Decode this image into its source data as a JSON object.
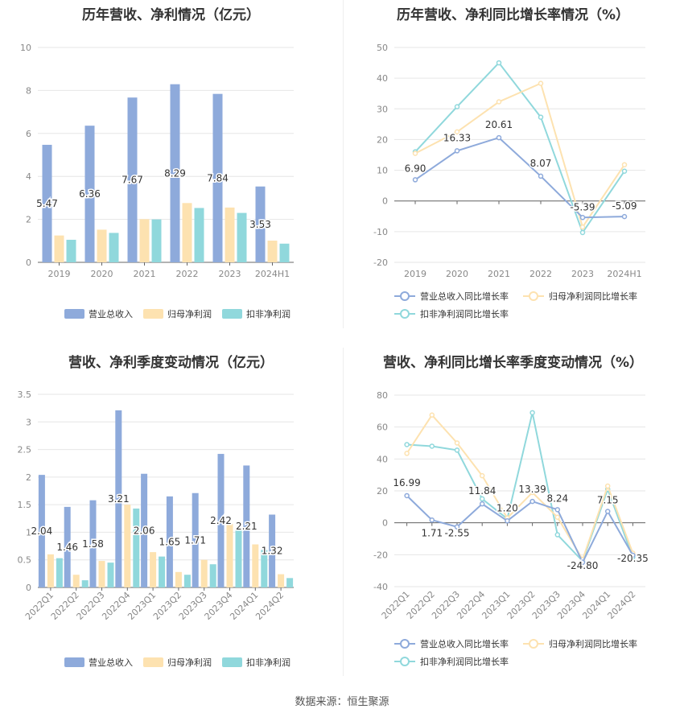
{
  "colors": {
    "revenue": "#8eaadb",
    "net_profit": "#fde2b0",
    "deducted_profit": "#90d8dc",
    "revenue_line": "#8eaadb",
    "net_line": "#fde2b0",
    "deducted_line": "#90d8dc"
  },
  "source": "数据来源：恒生聚源",
  "chart_data": [
    {
      "type": "bar",
      "title": "历年营收、净利情况（亿元）",
      "categories": [
        "2019",
        "2020",
        "2021",
        "2022",
        "2023",
        "2024H1"
      ],
      "ylim": [
        0,
        10
      ],
      "yticks": [
        0,
        2,
        4,
        6,
        8,
        10
      ],
      "series": [
        {
          "name": "营业总收入",
          "values": [
            5.47,
            6.36,
            7.67,
            8.29,
            7.84,
            3.53
          ],
          "labels": [
            "5.47",
            "6.36",
            "7.67",
            "8.29",
            "7.84",
            "3.53"
          ]
        },
        {
          "name": "归母净利润",
          "values": [
            1.25,
            1.52,
            2.01,
            2.76,
            2.55,
            1.01
          ]
        },
        {
          "name": "扣非净利润",
          "values": [
            1.05,
            1.37,
            2.0,
            2.53,
            2.3,
            0.87
          ]
        }
      ]
    },
    {
      "type": "line",
      "title": "历年营收、净利同比增长率情况（%）",
      "categories": [
        "2019",
        "2020",
        "2021",
        "2022",
        "2023",
        "2024H1"
      ],
      "ylim": [
        -20,
        50
      ],
      "yticks": [
        -20,
        -10,
        0,
        10,
        20,
        30,
        40,
        50
      ],
      "series": [
        {
          "name": "营业总收入同比增长率",
          "values": [
            6.9,
            16.33,
            20.61,
            8.07,
            -5.39,
            -5.09
          ],
          "labels": [
            "6.90",
            "16.33",
            "20.61",
            "8.07",
            "-5.39",
            "-5.09"
          ]
        },
        {
          "name": "归母净利润同比增长率",
          "values": [
            15.5,
            22.5,
            32.3,
            38.3,
            -8.5,
            11.8
          ]
        },
        {
          "name": "扣非净利润同比增长率",
          "values": [
            16.0,
            30.7,
            45.0,
            27.3,
            -10.3,
            9.7
          ]
        }
      ]
    },
    {
      "type": "bar",
      "title": "营收、净利季度变动情况（亿元）",
      "categories": [
        "2022Q1",
        "2022Q2",
        "2022Q3",
        "2022Q4",
        "2023Q1",
        "2023Q2",
        "2023Q3",
        "2023Q4",
        "2024Q1",
        "2024Q2"
      ],
      "ylim": [
        0,
        3.5
      ],
      "yticks": [
        0,
        0.5,
        1,
        1.5,
        2,
        2.5,
        3,
        3.5
      ],
      "series": [
        {
          "name": "营业总收入",
          "values": [
            2.04,
            1.46,
            1.58,
            3.21,
            2.06,
            1.65,
            1.71,
            2.42,
            2.21,
            1.32
          ],
          "labels": [
            "2.04",
            "1.46",
            "1.58",
            "3.21",
            "2.06",
            "1.65",
            "1.71",
            "2.42",
            "2.21",
            "1.32"
          ]
        },
        {
          "name": "归母净利润",
          "values": [
            0.6,
            0.23,
            0.48,
            1.5,
            0.64,
            0.28,
            0.5,
            1.15,
            0.78,
            0.24
          ]
        },
        {
          "name": "扣非净利润",
          "values": [
            0.53,
            0.13,
            0.45,
            1.43,
            0.56,
            0.23,
            0.42,
            1.05,
            0.68,
            0.17
          ]
        }
      ]
    },
    {
      "type": "line",
      "title": "营收、净利同比增长率季度变动情况（%）",
      "categories": [
        "2022Q1",
        "2022Q2",
        "2022Q3",
        "2022Q4",
        "2023Q1",
        "2023Q2",
        "2023Q3",
        "2023Q4",
        "2024Q1",
        "2024Q2"
      ],
      "ylim": [
        -40,
        80
      ],
      "yticks": [
        -40,
        -20,
        0,
        20,
        40,
        60,
        80
      ],
      "series": [
        {
          "name": "营业总收入同比增长率",
          "values": [
            16.99,
            1.71,
            -2.55,
            11.84,
            1.2,
            13.39,
            8.24,
            -24.8,
            7.15,
            -20.35
          ],
          "labels": [
            "16.99",
            "1.71",
            "-2.55",
            "11.84",
            "1.20",
            "13.39",
            "8.24",
            "-24.80",
            "7.15",
            "-20.35"
          ]
        },
        {
          "name": "归母净利润同比增长率",
          "values": [
            43.5,
            67.5,
            50.0,
            29.5,
            3.0,
            19.0,
            3.5,
            -23.0,
            23.0,
            -19.0
          ]
        },
        {
          "name": "扣非净利润同比增长率",
          "values": [
            49.0,
            48.0,
            45.5,
            15.0,
            2.5,
            69.0,
            -7.5,
            -24.0,
            21.0,
            -21.5
          ]
        }
      ]
    }
  ]
}
